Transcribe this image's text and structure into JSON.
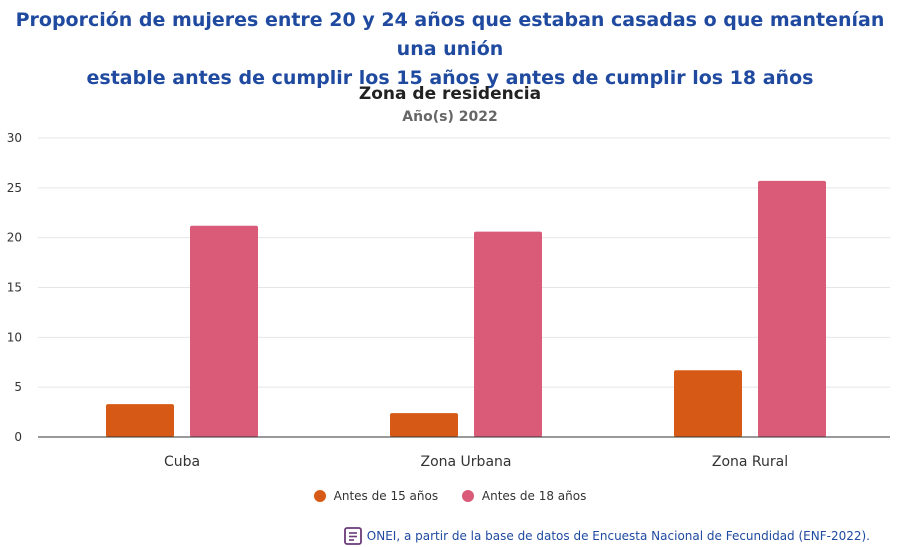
{
  "page": {
    "title_line1": "Proporción de mujeres entre 20 y 24 años que estaban casadas o que mantenían una unión",
    "title_line2": "estable antes de cumplir los 15 años y antes de cumplir los 18 años",
    "source": "ONEI, a partir de la base de datos de Encuesta Nacional de Fecundidad (ENF-2022)."
  },
  "colors": {
    "title": "#1f4aa0",
    "series1": "#d65a16",
    "series2": "#d95b78",
    "grid": "#e6e6e6",
    "axis": "#333333"
  },
  "chart_data": {
    "type": "bar",
    "title": "Zona de residencia",
    "subtitle": "Año(s) 2022",
    "categories": [
      "Cuba",
      "Zona Urbana",
      "Zona Rural"
    ],
    "series": [
      {
        "name": "Antes de 15 años",
        "values": [
          3.3,
          2.4,
          6.7
        ]
      },
      {
        "name": "Antes de 18 años",
        "values": [
          21.2,
          20.6,
          25.7
        ]
      }
    ],
    "ylim": [
      0,
      30
    ],
    "yticks": [
      0,
      5,
      10,
      15,
      20,
      25,
      30
    ],
    "xlabel": "",
    "ylabel": "",
    "grid": true,
    "legend_position": "bottom"
  }
}
